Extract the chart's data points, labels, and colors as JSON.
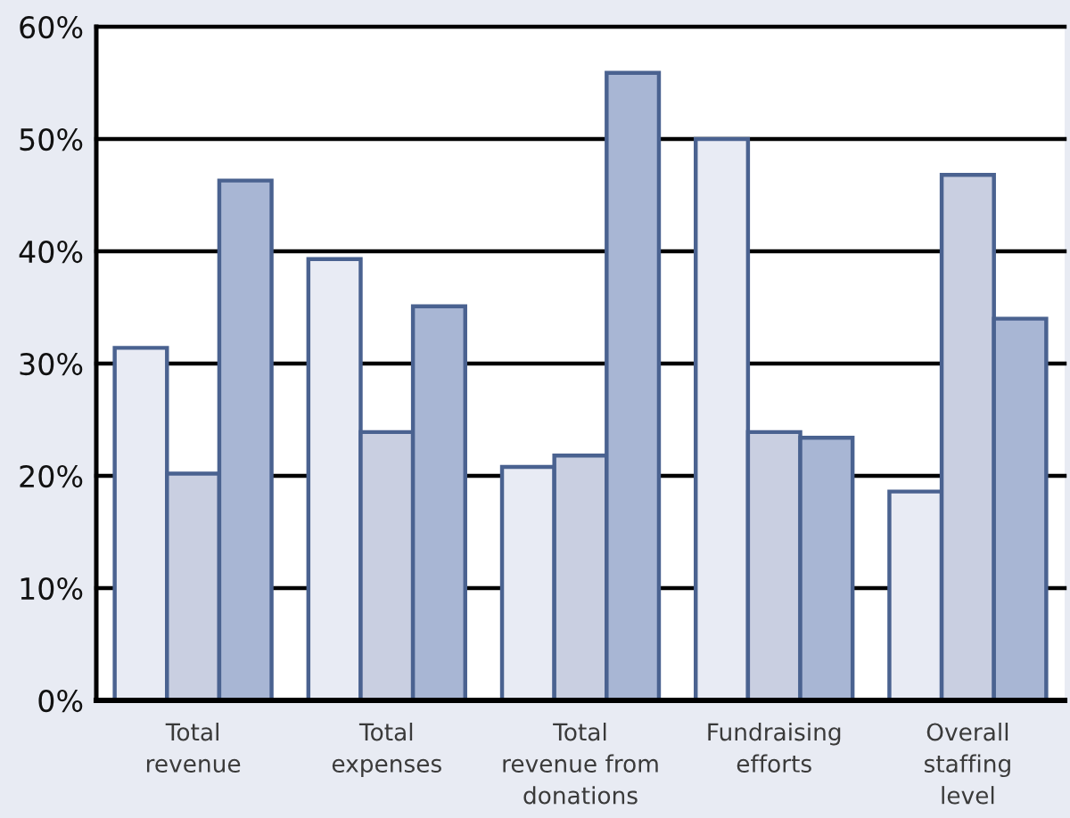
{
  "chart_data": {
    "type": "bar",
    "categories": [
      "Total\nrevenue",
      "Total\nexpenses",
      "Total\nrevenue from\ndonations",
      "Fundraising\nefforts",
      "Overall\nstaffing\nlevel"
    ],
    "series": [
      {
        "color": "#e8ebf4",
        "values": [
          31.4,
          39.3,
          20.8,
          50.0,
          18.6
        ]
      },
      {
        "color": "#c9cfe1",
        "values": [
          20.2,
          23.9,
          21.8,
          23.9,
          46.8
        ]
      },
      {
        "color": "#a8b6d4",
        "values": [
          46.3,
          35.1,
          55.9,
          23.4,
          34.0
        ]
      }
    ],
    "ylim": [
      0,
      60
    ],
    "yticks": [
      {
        "value": 0,
        "label": "0%"
      },
      {
        "value": 10,
        "label": "10%"
      },
      {
        "value": 20,
        "label": "20%"
      },
      {
        "value": 30,
        "label": "30%"
      },
      {
        "value": 40,
        "label": "40%"
      },
      {
        "value": 50,
        "label": "50%"
      },
      {
        "value": 60,
        "label": "60%"
      }
    ],
    "grid": "y"
  }
}
